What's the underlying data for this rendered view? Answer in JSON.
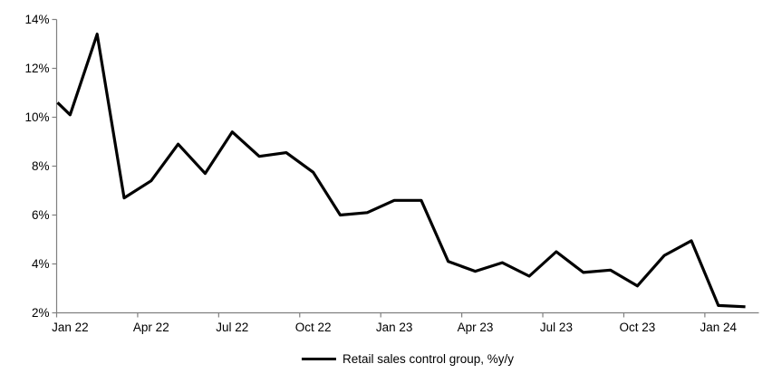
{
  "chart_data": {
    "type": "line",
    "title": "",
    "xlabel": "",
    "ylabel": "",
    "ylim": [
      2,
      14
    ],
    "y_tick_step": 2,
    "y_ticks": [
      "2%",
      "4%",
      "6%",
      "8%",
      "10%",
      "12%",
      "14%"
    ],
    "x_tick_labels": [
      "Jan 22",
      "Apr 22",
      "Jul 22",
      "Oct 22",
      "Jan 23",
      "Apr 23",
      "Jul 23",
      "Oct 23",
      "Jan 24"
    ],
    "x_tick_interval_months": 3,
    "grid": false,
    "legend_position": "bottom-center",
    "axis_color": "#808080",
    "background_color": "#ffffff",
    "categories": [
      "Jan 22",
      "Feb 22",
      "Mar 22",
      "Apr 22",
      "May 22",
      "Jun 22",
      "Jul 22",
      "Aug 22",
      "Sep 22",
      "Oct 22",
      "Nov 22",
      "Dec 22",
      "Jan 23",
      "Feb 23",
      "Mar 23",
      "Apr 23",
      "May 23",
      "Jun 23",
      "Jul 23",
      "Aug 23",
      "Sep 23",
      "Oct 23",
      "Nov 23",
      "Dec 23",
      "Jan 24",
      "Feb 24"
    ],
    "series": [
      {
        "name": "Retail sales control group, %y/y",
        "color": "#000000",
        "values": [
          10.1,
          13.4,
          6.7,
          7.4,
          8.9,
          7.7,
          9.4,
          8.4,
          8.55,
          7.75,
          6.0,
          6.1,
          6.6,
          6.6,
          4.1,
          3.7,
          4.05,
          3.5,
          4.5,
          3.65,
          3.75,
          3.1,
          4.35,
          4.95,
          2.3,
          2.25
        ]
      }
    ],
    "edge_start_value": 10.6
  }
}
